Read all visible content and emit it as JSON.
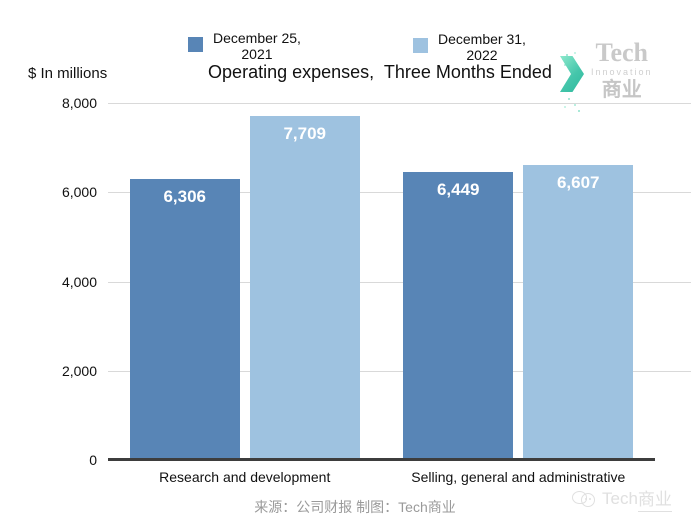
{
  "header": {
    "units_label": "$ In millions",
    "title": "Operating expenses,  Three Months Ended"
  },
  "legend": {
    "items": [
      {
        "line1": "December 25,",
        "line2": "2021",
        "color": "#5885b6"
      },
      {
        "line1": "December 31,",
        "line2": "2022",
        "color": "#9ec2e0"
      }
    ]
  },
  "logo": {
    "name": "Tech",
    "sub": "Innovation",
    "cn": "商业",
    "accent_color": "#45c6ab"
  },
  "chart_data": {
    "type": "bar",
    "title": "Operating expenses, Three Months Ended",
    "ylabel": "$ In millions",
    "xlabel": "",
    "categories": [
      "Research and development",
      "Selling, general and administrative"
    ],
    "series": [
      {
        "name": "December 25, 2021",
        "color": "#5885b6",
        "values": [
          6306,
          6449
        ],
        "labels": [
          "6,306",
          "6,449"
        ]
      },
      {
        "name": "December 31, 2022",
        "color": "#9ec2e0",
        "values": [
          7709,
          6607
        ],
        "labels": [
          "7,709",
          "6,607"
        ]
      }
    ],
    "ylim": [
      0,
      8000
    ],
    "yticks": [
      0,
      2000,
      4000,
      6000,
      8000
    ],
    "ytick_labels": [
      "0",
      "2,000",
      "4,000",
      "6,000",
      "8,000"
    ],
    "grid": true,
    "legend_position": "top",
    "value_labels": "inside-top",
    "gridline_color": "#d9d9d9",
    "axis_color": "#3d3d3d"
  },
  "footer": {
    "source": "来源：公司财报 制图：Tech商业",
    "watermark_latin": "Tech",
    "watermark_cn": "商业"
  }
}
